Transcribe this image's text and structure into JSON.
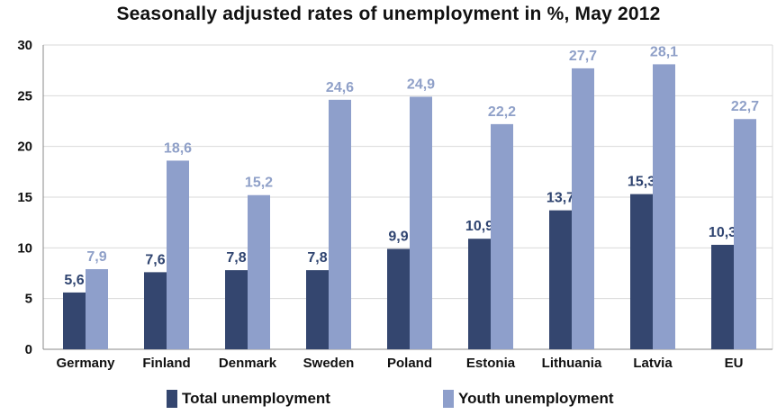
{
  "colors": {
    "total": "#34466f",
    "youth": "#8e9fcb",
    "grid": "#d9d9d9",
    "axis": "#888888"
  },
  "chart_data": {
    "type": "bar",
    "title": "Seasonally adjusted rates of unemployment in %, May 2012",
    "categories": [
      "Germany",
      "Finland",
      "Denmark",
      "Sweden",
      "Poland",
      "Estonia",
      "Lithuania",
      "Latvia",
      "EU"
    ],
    "series": [
      {
        "name": "Total unemployment",
        "values": [
          5.6,
          7.6,
          7.8,
          7.8,
          9.9,
          10.9,
          13.7,
          15.3,
          10.3
        ],
        "labels": [
          "5,6",
          "7,6",
          "7,8",
          "7,8",
          "9,9",
          "10,9",
          "13,7",
          "15,3",
          "10,3"
        ]
      },
      {
        "name": "Youth unemployment",
        "values": [
          7.9,
          18.6,
          15.2,
          24.6,
          24.9,
          22.2,
          27.7,
          28.1,
          22.7
        ],
        "labels": [
          "7,9",
          "18,6",
          "15,2",
          "24,6",
          "24,9",
          "22,2",
          "27,7",
          "28,1",
          "22,7"
        ]
      }
    ],
    "ylim": [
      0,
      30
    ],
    "yticks": [
      0,
      5,
      10,
      15,
      20,
      25,
      30
    ],
    "grid": true,
    "legend": "bottom"
  }
}
